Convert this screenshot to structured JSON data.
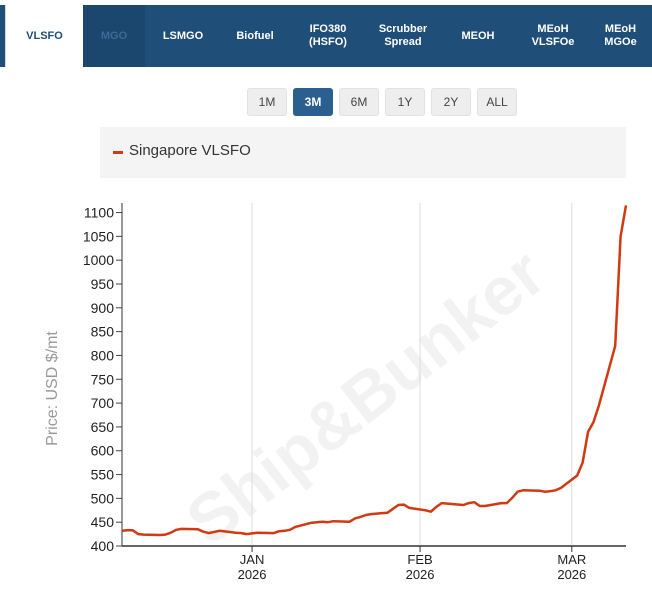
{
  "tabs": [
    {
      "label": "VLSFO",
      "active": true
    },
    {
      "label": "MGO",
      "active": false,
      "hovered": true
    },
    {
      "label": "LSMGO",
      "active": false
    },
    {
      "label": "Biofuel",
      "active": false
    },
    {
      "label": "IFO380\n(HSFO)",
      "active": false
    },
    {
      "label": "Scrubber\nSpread",
      "active": false
    },
    {
      "label": "MEOH",
      "active": false
    },
    {
      "label": "MEoH\nVLSFOe",
      "active": false
    },
    {
      "label": "MEoH\nMGOe",
      "active": false
    }
  ],
  "ranges": [
    {
      "label": "1M",
      "active": false
    },
    {
      "label": "3M",
      "active": true
    },
    {
      "label": "6M",
      "active": false
    },
    {
      "label": "1Y",
      "active": false
    },
    {
      "label": "2Y",
      "active": false
    },
    {
      "label": "ALL",
      "active": false
    }
  ],
  "watermark": "Ship&Bunker",
  "colors": {
    "series": "#d03a10",
    "nav": "#1f4e79",
    "active_range": "#2a5f8f"
  },
  "chart_data": {
    "type": "line",
    "ylabel": "Price: USD $/mt",
    "ylim": [
      400,
      1120
    ],
    "yticks": [
      400,
      450,
      500,
      550,
      600,
      650,
      700,
      750,
      800,
      850,
      900,
      950,
      1000,
      1050,
      1100
    ],
    "xlim": [
      "2025-12-08",
      "2026-03-11"
    ],
    "xticks": [
      {
        "date": "2026-01-01",
        "month": "JAN",
        "year": "2026"
      },
      {
        "date": "2026-02-01",
        "month": "FEB",
        "year": "2026"
      },
      {
        "date": "2026-03-01",
        "month": "MAR",
        "year": "2026"
      }
    ],
    "grid": true,
    "legend": "top",
    "series": [
      {
        "name": "Singapore VLSFO",
        "x": [
          "2025-12-08",
          "2025-12-09",
          "2025-12-10",
          "2025-12-11",
          "2025-12-12",
          "2025-12-15",
          "2025-12-16",
          "2025-12-17",
          "2025-12-18",
          "2025-12-19",
          "2025-12-22",
          "2025-12-23",
          "2025-12-24",
          "2025-12-26",
          "2025-12-29",
          "2025-12-30",
          "2025-12-31",
          "2026-01-02",
          "2026-01-05",
          "2026-01-06",
          "2026-01-07",
          "2026-01-08",
          "2026-01-09",
          "2026-01-12",
          "2026-01-13",
          "2026-01-14",
          "2026-01-15",
          "2026-01-16",
          "2026-01-19",
          "2026-01-20",
          "2026-01-21",
          "2026-01-22",
          "2026-01-23",
          "2026-01-26",
          "2026-01-27",
          "2026-01-28",
          "2026-01-29",
          "2026-01-30",
          "2026-02-02",
          "2026-02-03",
          "2026-02-04",
          "2026-02-05",
          "2026-02-06",
          "2026-02-09",
          "2026-02-10",
          "2026-02-11",
          "2026-02-12",
          "2026-02-13",
          "2026-02-16",
          "2026-02-17",
          "2026-02-18",
          "2026-02-19",
          "2026-02-20",
          "2026-02-23",
          "2026-02-24",
          "2026-02-25",
          "2026-02-26",
          "2026-02-27",
          "2026-03-02",
          "2026-03-03",
          "2026-03-04",
          "2026-03-05",
          "2026-03-06",
          "2026-03-09",
          "2026-03-10",
          "2026-03-11"
        ],
        "y": [
          432,
          433,
          433,
          425,
          424,
          423,
          424,
          428,
          434,
          436,
          435,
          430,
          427,
          432,
          428,
          427,
          425,
          428,
          427,
          431,
          432,
          434,
          440,
          449,
          450,
          451,
          450,
          452,
          451,
          458,
          461,
          465,
          467,
          470,
          478,
          486,
          487,
          480,
          475,
          472,
          482,
          490,
          489,
          486,
          490,
          492,
          484,
          484,
          490,
          490,
          501,
          514,
          517,
          516,
          514,
          515,
          517,
          522,
          548,
          575,
          640,
          660,
          695,
          820,
          1050,
          1115
        ]
      }
    ]
  }
}
